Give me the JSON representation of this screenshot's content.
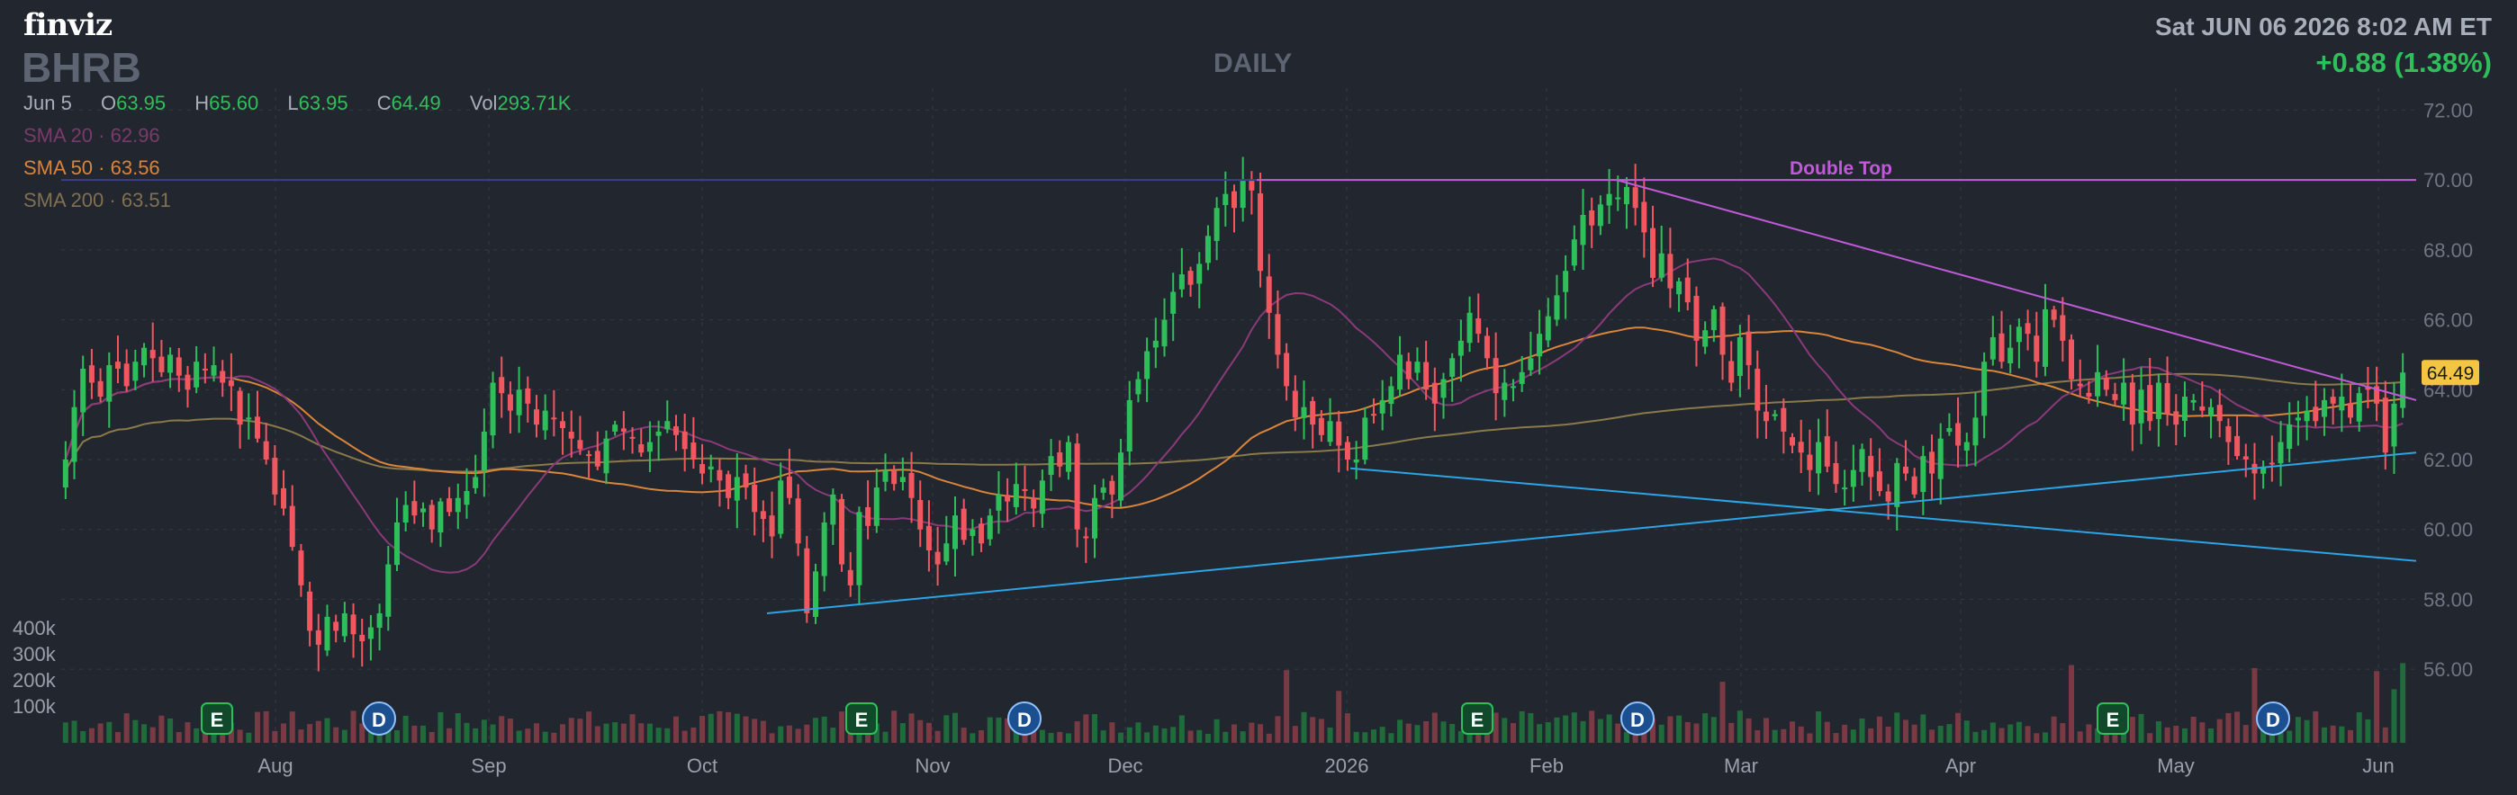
{
  "header": {
    "logo": "finviz",
    "ticker": "BHRB",
    "period": "DAILY",
    "datetime": "Sat JUN 06 2026 8:02 AM ET",
    "change": "+0.88 (1.38%)"
  },
  "ohlc": {
    "date": "Jun 5",
    "open_label": "O",
    "open": "63.95",
    "high_label": "H",
    "high": "65.60",
    "low_label": "L",
    "low": "63.95",
    "close_label": "C",
    "close": "64.49",
    "vol_label": "Vol",
    "vol": "293.71K"
  },
  "sma": {
    "sma20_label": "SMA 20",
    "sma20": "62.96",
    "sma50_label": "SMA 50",
    "sma50": "63.56",
    "sma200_label": "SMA 200",
    "sma200": "63.51"
  },
  "colors": {
    "background": "#22262f",
    "up": "#2fbf5a",
    "down": "#f0575f",
    "sma20": "#8a3a7a",
    "sma50": "#d9853a",
    "sma200": "#8a7a4a",
    "trend_blue": "#2aa5e6",
    "double_top": "#c05ad8",
    "grid": "#343945",
    "price_badge": "#f4c542"
  },
  "chart_data": {
    "type": "candlestick",
    "price_axis": {
      "ticks": [
        "72.00",
        "70.00",
        "68.00",
        "66.00",
        "64.00",
        "62.00",
        "60.00",
        "58.00",
        "56.00"
      ],
      "range": [
        55,
        72.5
      ]
    },
    "volume_axis": {
      "ticks": [
        "400k",
        "300k",
        "200k",
        "100k"
      ]
    },
    "x_ticks": [
      "Aug",
      "Sep",
      "Oct",
      "Nov",
      "Dec",
      "2026",
      "Feb",
      "Mar",
      "Apr",
      "May",
      "Jun"
    ],
    "last_price": "64.49",
    "annotations": [
      {
        "label": "Double Top",
        "level": 70.0
      },
      {
        "label": "",
        "kind": "ascending support",
        "from": 57.6,
        "to": 62.2
      },
      {
        "label": "",
        "kind": "descending resistance",
        "from": 70.0,
        "to": 63.9
      },
      {
        "label": "",
        "kind": "descending lower channel",
        "from": 61.8,
        "to": 59.1
      }
    ],
    "event_markers": [
      "E",
      "D",
      "E",
      "D",
      "E",
      "D",
      "E",
      "D"
    ],
    "close_series": [
      62.0,
      63.5,
      64.6,
      64.2,
      63.8,
      64.7,
      64.6,
      64.1,
      64.8,
      65.2,
      64.9,
      64.5,
      65.0,
      64.4,
      64.0,
      64.8,
      64.6,
      64.7,
      64.2,
      64.1,
      63.0,
      63.2,
      62.6,
      62.0,
      61.0,
      60.6,
      59.5,
      58.4,
      57.1,
      56.7,
      57.5,
      57.1,
      57.6,
      57.0,
      56.8,
      57.2,
      57.6,
      59.0,
      60.2,
      60.7,
      60.4,
      60.6,
      60.0,
      60.8,
      60.5,
      60.9,
      61.1,
      61.5,
      62.8,
      64.2,
      63.9,
      63.4,
      64.0,
      63.6,
      63.0,
      63.4,
      63.2,
      62.9,
      62.6,
      62.3,
      62.1,
      61.8,
      62.6,
      63.0,
      62.8,
      62.6,
      62.2,
      62.5,
      62.8,
      63.1,
      62.7,
      62.3,
      62.0,
      61.6,
      61.8,
      61.4,
      60.9,
      61.5,
      61.2,
      60.5,
      60.3,
      59.8,
      61.4,
      60.9,
      59.6,
      57.6,
      58.8,
      60.2,
      61.0,
      59.0,
      58.4,
      60.5,
      60.1,
      61.2,
      61.7,
      61.3,
      61.5,
      60.9,
      60.0,
      59.4,
      59.0,
      59.6,
      60.4,
      59.7,
      60.0,
      59.6,
      60.4,
      61.0,
      60.8,
      61.3,
      61.1,
      60.6,
      61.4,
      62.1,
      61.8,
      62.5,
      60.0,
      59.8,
      60.9,
      61.2,
      61.0,
      62.2,
      63.7,
      64.3,
      65.1,
      65.4,
      66.0,
      66.8,
      67.3,
      67.0,
      67.6,
      68.4,
      69.2,
      69.6,
      69.2,
      70.0,
      69.7,
      67.4,
      66.2,
      65.0,
      64.1,
      63.2,
      63.5,
      63.0,
      62.7,
      63.1,
      62.4,
      62.0,
      62.0,
      63.2,
      63.3,
      63.7,
      64.1,
      65.0,
      64.3,
      64.8,
      64.0,
      63.6,
      64.3,
      64.9,
      65.4,
      66.2,
      65.6,
      64.9,
      63.9,
      64.2,
      64.1,
      64.5,
      64.9,
      65.6,
      66.1,
      66.7,
      67.4,
      68.3,
      69.0,
      68.7,
      69.3,
      69.6,
      69.5,
      69.8,
      69.2,
      68.5,
      67.2,
      67.9,
      66.9,
      67.1,
      66.5,
      65.4,
      65.7,
      66.3,
      65.0,
      64.2,
      65.5,
      64.7,
      63.4,
      63.1,
      63.3,
      62.8,
      62.4,
      62.2,
      61.7,
      62.5,
      61.8,
      61.3,
      61.2,
      61.7,
      62.3,
      61.5,
      61.1,
      60.8,
      61.9,
      61.6,
      61.0,
      62.1,
      61.6,
      62.6,
      62.9,
      62.4,
      62.5,
      63.2,
      64.8,
      65.5,
      64.8,
      65.2,
      65.8,
      65.6,
      64.8,
      66.3,
      66.0,
      65.4,
      64.3,
      64.1,
      63.8,
      64.5,
      64.0,
      63.7,
      64.2,
      63.0,
      64.0,
      63.1,
      64.2,
      63.3,
      63.0,
      63.8,
      63.7,
      63.4,
      63.5,
      63.1,
      62.5,
      62.1,
      62.0,
      61.6,
      61.8,
      61.9,
      62.5,
      63.0,
      63.2,
      63.4,
      63.1,
      63.7,
      63.6,
      63.8,
      63.2,
      63.9,
      64.0,
      63.6,
      62.2,
      63.6,
      64.49
    ]
  }
}
